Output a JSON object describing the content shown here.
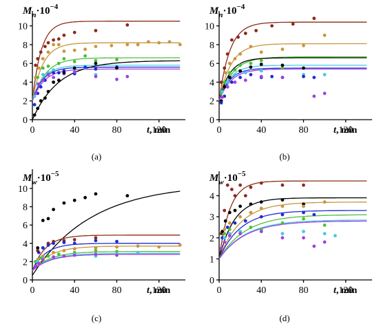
{
  "chart_data": [
    {
      "panel": "(a)",
      "type": "scatter",
      "ylabel_var": "M",
      "ylabel_sub": "n",
      "ylabel_mult": "·10",
      "ylabel_exp": "−4",
      "xlabel_var": "t",
      "xlabel_unit": ", min",
      "xlim": [
        0,
        145
      ],
      "ylim": [
        0,
        11
      ],
      "xticks": [
        "0",
        "40",
        "80",
        "120"
      ],
      "yticks": [
        "0",
        "2",
        "4",
        "6",
        "8",
        "10"
      ],
      "series": [
        {
          "color": "#8B2A1A",
          "fit": {
            "a": 10.5,
            "b": 0.12,
            "c": 2.0
          },
          "x": [
            3,
            5,
            8,
            12,
            15,
            20,
            25,
            30,
            40,
            60,
            90
          ],
          "y": [
            5.8,
            6.5,
            7.2,
            7.8,
            8.2,
            8.5,
            8.6,
            9.0,
            9.3,
            9.5,
            10.1
          ]
        },
        {
          "color": "#C8963C",
          "fit": {
            "a": 8.2,
            "b": 0.1,
            "c": 2.0
          },
          "x": [
            3,
            6,
            10,
            15,
            20,
            25,
            30,
            40,
            50,
            60,
            75,
            90,
            100,
            110,
            120,
            130,
            140
          ],
          "y": [
            4.5,
            5.5,
            6.5,
            7.2,
            8.0,
            8.0,
            7.3,
            7.4,
            7.5,
            7.8,
            7.9,
            8.0,
            8.0,
            8.3,
            8.2,
            8.3,
            8.0
          ]
        },
        {
          "color": "#4CBF3A",
          "fit": {
            "a": 6.6,
            "b": 0.08,
            "c": 2.0
          },
          "x": [
            2,
            5,
            10,
            15,
            20,
            25,
            30,
            40,
            50,
            60,
            80
          ],
          "y": [
            2.8,
            4.5,
            5.5,
            5.7,
            5.2,
            6.0,
            6.5,
            6.2,
            6.8,
            6.3,
            6.4
          ]
        },
        {
          "color": "#46C8E6",
          "fit": {
            "a": 5.8,
            "b": 0.1,
            "c": 2.0
          },
          "x": [
            2,
            5,
            10,
            15,
            20,
            30,
            40,
            50,
            60,
            80
          ],
          "y": [
            2.5,
            3.8,
            4.8,
            5.0,
            5.3,
            5.2,
            5.4,
            5.5,
            4.8,
            5.6
          ]
        },
        {
          "color": "#1E2AD2",
          "fit": {
            "a": 5.6,
            "b": 0.1,
            "c": 2.0
          },
          "x": [
            2,
            5,
            8,
            12,
            15,
            20,
            25,
            30,
            40,
            50,
            60,
            80
          ],
          "y": [
            1.6,
            2.8,
            3.5,
            4.2,
            4.8,
            5.0,
            5.0,
            5.2,
            4.9,
            5.6,
            5.4,
            5.6
          ]
        },
        {
          "color": "#A040E0",
          "fit": {
            "a": 5.4,
            "b": 0.09,
            "c": 2.0
          },
          "x": [
            3,
            6,
            10,
            15,
            20,
            30,
            40,
            60,
            80,
            90
          ],
          "y": [
            2.8,
            3.8,
            4.2,
            4.8,
            4.5,
            4.9,
            5.1,
            4.6,
            4.3,
            4.6
          ]
        },
        {
          "color": "#000000",
          "fit": {
            "a": 6.3,
            "b": 0.04,
            "c": 0.0
          },
          "x": [
            2,
            5,
            8,
            12,
            15,
            20,
            25,
            30,
            40,
            60,
            80
          ],
          "y": [
            0.5,
            1.2,
            2.0,
            2.3,
            3.0,
            4.0,
            4.2,
            5.0,
            5.5,
            6.0,
            5.5
          ]
        }
      ]
    },
    {
      "panel": "(b)",
      "type": "scatter",
      "ylabel_var": "M",
      "ylabel_sub": "n",
      "ylabel_mult": "·10",
      "ylabel_exp": "−4",
      "xlabel_var": "t",
      "xlabel_unit": ", min",
      "xlim": [
        0,
        145
      ],
      "ylim": [
        0,
        11
      ],
      "xticks": [
        "0",
        "40",
        "80",
        "120"
      ],
      "yticks": [
        "0",
        "2",
        "4",
        "6",
        "8",
        "10"
      ],
      "series": [
        {
          "color": "#8B2A1A",
          "fit": {
            "a": 10.4,
            "b": 0.1,
            "c": 2.0
          },
          "x": [
            2,
            5,
            8,
            12,
            18,
            25,
            35,
            50,
            70,
            90
          ],
          "y": [
            4.0,
            5.5,
            7.0,
            8.5,
            8.8,
            9.2,
            9.5,
            10.0,
            10.2,
            10.8
          ]
        },
        {
          "color": "#C8963C",
          "fit": {
            "a": 8.1,
            "b": 0.09,
            "c": 2.0
          },
          "x": [
            3,
            6,
            10,
            15,
            20,
            30,
            40,
            60,
            80,
            100
          ],
          "y": [
            3.5,
            5.0,
            6.0,
            6.5,
            7.0,
            7.8,
            7.2,
            7.5,
            7.9,
            9.0
          ]
        },
        {
          "color": "#4CBF3A",
          "fit": {
            "a": 6.7,
            "b": 0.08,
            "c": 2.0
          },
          "x": [
            2,
            5,
            10,
            15,
            20,
            30,
            40,
            60
          ],
          "y": [
            2.8,
            4.0,
            5.0,
            5.3,
            5.8,
            6.0,
            6.3,
            5.5
          ]
        },
        {
          "color": "#000000",
          "fit": {
            "a": 6.6,
            "b": 0.1,
            "c": 2.0
          },
          "x": [
            2,
            5,
            10,
            20,
            30,
            40,
            60,
            80
          ],
          "y": [
            2.0,
            3.5,
            4.5,
            5.2,
            5.6,
            5.9,
            5.8,
            5.5
          ]
        },
        {
          "color": "#46C8E6",
          "fit": {
            "a": 5.8,
            "b": 0.1,
            "c": 2.0
          },
          "x": [
            3,
            8,
            15,
            25,
            40,
            60,
            80,
            100
          ],
          "y": [
            3.0,
            4.0,
            4.8,
            5.0,
            5.2,
            4.5,
            4.8,
            4.8
          ]
        },
        {
          "color": "#1E2AD2",
          "fit": {
            "a": 5.5,
            "b": 0.1,
            "c": 2.0
          },
          "x": [
            2,
            5,
            8,
            12,
            20,
            30,
            40,
            50,
            60,
            80,
            90
          ],
          "y": [
            1.8,
            2.5,
            3.5,
            4.0,
            4.5,
            4.8,
            4.5,
            4.6,
            4.5,
            4.6,
            4.5
          ]
        },
        {
          "color": "#A040E0",
          "fit": {
            "a": 5.4,
            "b": 0.09,
            "c": 2.0
          },
          "x": [
            3,
            8,
            15,
            25,
            40,
            60,
            90,
            100
          ],
          "y": [
            2.4,
            3.5,
            4.0,
            4.2,
            4.6,
            4.5,
            2.5,
            2.8
          ]
        }
      ]
    },
    {
      "panel": "(c)",
      "type": "scatter",
      "ylabel_var": "M",
      "ylabel_sub": "w",
      "ylabel_mult": "·10",
      "ylabel_exp": "−5",
      "xlabel_var": "t",
      "xlabel_unit": ", min",
      "xlim": [
        0,
        145
      ],
      "ylim": [
        0,
        11.5
      ],
      "xticks": [
        "0",
        "40",
        "80",
        "120"
      ],
      "yticks": [
        "0",
        "2",
        "4",
        "6",
        "8",
        "10"
      ],
      "series": [
        {
          "color": "#000000",
          "fit": {
            "a": 10.5,
            "b": 0.018,
            "c": 0.5
          },
          "x": [
            5,
            10,
            15,
            20,
            30,
            40,
            50,
            60,
            90
          ],
          "y": [
            3.5,
            6.5,
            6.7,
            7.7,
            8.4,
            8.7,
            9.0,
            9.4,
            9.2
          ]
        },
        {
          "color": "#8B2A1A",
          "fit": {
            "a": 4.9,
            "b": 0.08,
            "c": 1.0
          },
          "x": [
            5,
            10,
            15,
            20,
            30,
            40,
            60
          ],
          "y": [
            3.2,
            3.5,
            4.0,
            4.2,
            4.3,
            4.4,
            4.6
          ]
        },
        {
          "color": "#1E2AD2",
          "fit": {
            "a": 4.0,
            "b": 0.08,
            "c": 1.0
          },
          "x": [
            3,
            6,
            10,
            15,
            20,
            30,
            40,
            60,
            80
          ],
          "y": [
            2.0,
            3.0,
            3.5,
            3.8,
            4.0,
            4.1,
            4.0,
            4.3,
            4.2
          ]
        },
        {
          "color": "#C8963C",
          "fit": {
            "a": 3.7,
            "b": 0.06,
            "c": 1.0
          },
          "x": [
            5,
            10,
            20,
            30,
            40,
            60,
            80,
            100,
            120,
            140
          ],
          "y": [
            2.2,
            2.6,
            3.0,
            3.2,
            3.4,
            3.5,
            3.6,
            3.7,
            3.6,
            3.8
          ]
        },
        {
          "color": "#4CBF3A",
          "fit": {
            "a": 3.1,
            "b": 0.06,
            "c": 1.0
          },
          "x": [
            3,
            8,
            15,
            25,
            40,
            60,
            80
          ],
          "y": [
            2.0,
            2.4,
            2.6,
            2.8,
            3.0,
            3.2,
            3.1
          ]
        },
        {
          "color": "#46C8E6",
          "fit": {
            "a": 2.9,
            "b": 0.06,
            "c": 1.0
          },
          "x": [
            5,
            10,
            20,
            40,
            60,
            80,
            100
          ],
          "y": [
            2.0,
            2.3,
            2.5,
            2.8,
            2.6,
            2.8,
            3.0
          ]
        },
        {
          "color": "#A040E0",
          "fit": {
            "a": 2.8,
            "b": 0.06,
            "c": 1.0
          },
          "x": [
            3,
            6,
            10,
            20,
            30,
            40,
            60,
            80
          ],
          "y": [
            1.5,
            1.8,
            2.2,
            2.5,
            2.6,
            2.7,
            2.8,
            2.7
          ]
        }
      ]
    },
    {
      "panel": "(d)",
      "type": "scatter",
      "ylabel_var": "M",
      "ylabel_sub": "w",
      "ylabel_mult": "·10",
      "ylabel_exp": "−5",
      "xlabel_var": "t",
      "xlabel_unit": ", min",
      "xlim": [
        0,
        145
      ],
      "ylim": [
        0,
        4.9
      ],
      "xticks": [
        "0",
        "40",
        "80",
        "120"
      ],
      "yticks": [
        "0",
        "1",
        "2",
        "3",
        "4"
      ],
      "series": [
        {
          "color": "#8B2A1A",
          "fit": {
            "a": 4.7,
            "b": 0.1,
            "c": 1.0
          },
          "x": [
            2,
            5,
            8,
            12,
            15,
            20,
            25,
            30,
            40,
            60,
            80
          ],
          "y": [
            2.2,
            3.3,
            4.5,
            4.3,
            4.0,
            4.5,
            4.0,
            4.4,
            4.6,
            4.5,
            4.5
          ]
        },
        {
          "color": "#000000",
          "fit": {
            "a": 3.9,
            "b": 0.07,
            "c": 1.0
          },
          "x": [
            3,
            6,
            10,
            15,
            20,
            30,
            40,
            60,
            80
          ],
          "y": [
            2.3,
            2.8,
            3.2,
            3.3,
            3.5,
            3.6,
            3.7,
            3.8,
            3.6
          ]
        },
        {
          "color": "#C8963C",
          "fit": {
            "a": 3.7,
            "b": 0.05,
            "c": 1.0
          },
          "x": [
            5,
            10,
            20,
            30,
            40,
            60,
            80,
            100
          ],
          "y": [
            2.4,
            2.7,
            3.0,
            3.2,
            3.4,
            3.5,
            3.5,
            3.7
          ]
        },
        {
          "color": "#1E2AD2",
          "fit": {
            "a": 3.3,
            "b": 0.05,
            "c": 1.0
          },
          "x": [
            3,
            8,
            15,
            25,
            40,
            60,
            80,
            90
          ],
          "y": [
            2.0,
            2.5,
            2.7,
            2.8,
            3.0,
            3.1,
            3.2,
            3.1
          ]
        },
        {
          "color": "#4CBF3A",
          "fit": {
            "a": 3.1,
            "b": 0.04,
            "c": 1.0
          },
          "x": [
            5,
            10,
            20,
            30,
            40,
            60,
            80,
            100
          ],
          "y": [
            2.2,
            2.4,
            2.3,
            2.5,
            2.4,
            2.7,
            2.9,
            2.6
          ]
        },
        {
          "color": "#46C8E6",
          "fit": {
            "a": 2.85,
            "b": 0.04,
            "c": 1.0
          },
          "x": [
            5,
            10,
            20,
            40,
            60,
            80,
            100,
            110
          ],
          "y": [
            2.0,
            2.2,
            2.3,
            2.3,
            2.2,
            2.3,
            2.2,
            2.1
          ]
        },
        {
          "color": "#A040E0",
          "fit": {
            "a": 2.8,
            "b": 0.04,
            "c": 1.0
          },
          "x": [
            2,
            5,
            10,
            20,
            40,
            60,
            80,
            90,
            100
          ],
          "y": [
            1.5,
            1.8,
            2.1,
            2.2,
            2.3,
            2.0,
            2.0,
            1.6,
            1.8
          ]
        }
      ]
    }
  ]
}
